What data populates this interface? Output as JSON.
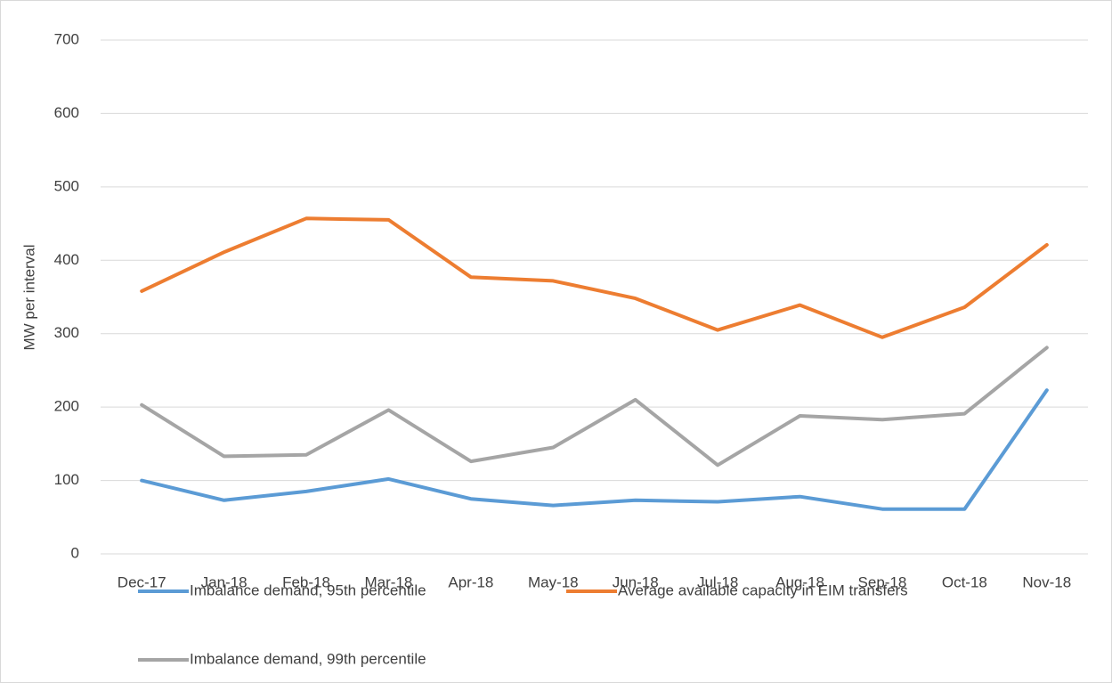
{
  "chart_data": {
    "type": "line",
    "y_label": "MW per interval",
    "categories": [
      "Dec-17",
      "Jan-18",
      "Feb-18",
      "Mar-18",
      "Apr-18",
      "May-18",
      "Jun-18",
      "Jul-18",
      "Aug-18",
      "Sep-18",
      "Oct-18",
      "Nov-18"
    ],
    "series": [
      {
        "name": "Imbalance demand, 95th percentile",
        "color": "#5b9bd5",
        "values": [
          100,
          73,
          85,
          102,
          75,
          66,
          73,
          71,
          78,
          61,
          61,
          223
        ]
      },
      {
        "name": "Average available capacity in EIM transfers",
        "color": "#ed7d31",
        "values": [
          358,
          411,
          457,
          455,
          377,
          372,
          348,
          305,
          339,
          295,
          336,
          421
        ]
      },
      {
        "name": "Imbalance demand, 99th percentile",
        "color": "#a5a5a5",
        "values": [
          203,
          133,
          135,
          196,
          126,
          145,
          210,
          121,
          188,
          183,
          191,
          281
        ]
      }
    ],
    "ylim": [
      0,
      700
    ],
    "yticks": [
      0,
      100,
      200,
      300,
      400,
      500,
      600,
      700
    ],
    "grid": true
  }
}
